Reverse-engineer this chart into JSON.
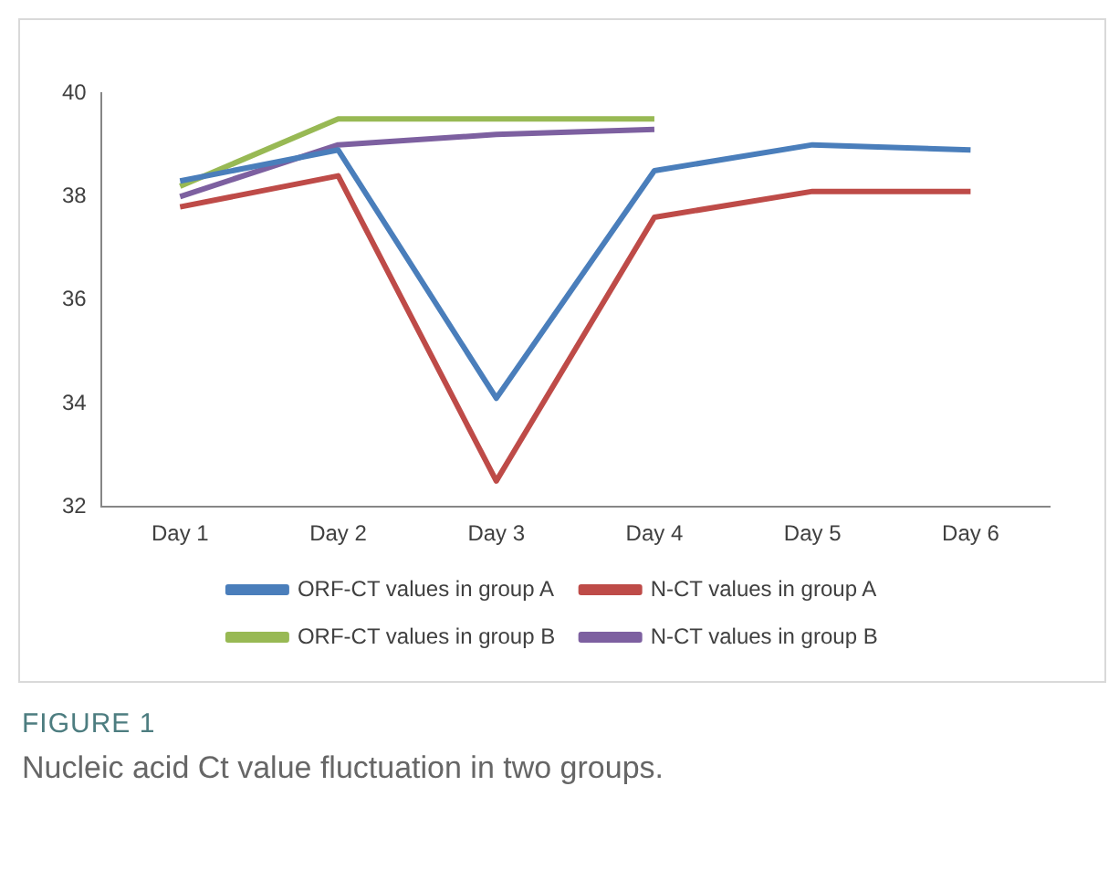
{
  "chart_data": {
    "type": "line",
    "categories": [
      "Day 1",
      "Day 2",
      "Day 3",
      "Day 4",
      "Day 5",
      "Day 6"
    ],
    "series": [
      {
        "name": "ORF-CT values in group A",
        "color": "#4a7ebb",
        "values": [
          38.3,
          38.9,
          34.1,
          38.5,
          39.0,
          38.9
        ]
      },
      {
        "name": "N-CT values in group A",
        "color": "#be4b48",
        "values": [
          37.8,
          38.4,
          32.5,
          37.6,
          38.1,
          38.1
        ]
      },
      {
        "name": "ORF-CT values in group B",
        "color": "#98b954",
        "values": [
          38.2,
          39.5,
          39.5,
          39.5,
          null,
          null
        ]
      },
      {
        "name": "N-CT values in group B",
        "color": "#7d60a0",
        "values": [
          38.0,
          39.0,
          39.2,
          39.3,
          null,
          null
        ]
      }
    ],
    "ylim": [
      32,
      40
    ],
    "yticks": [
      32,
      34,
      36,
      38,
      40
    ],
    "grid": false,
    "legend": "bottom",
    "marker": "none",
    "line_style": "solid",
    "annotations": [
      "FIGURE 1",
      "Nucleic acid Ct value fluctuation in two groups."
    ]
  }
}
